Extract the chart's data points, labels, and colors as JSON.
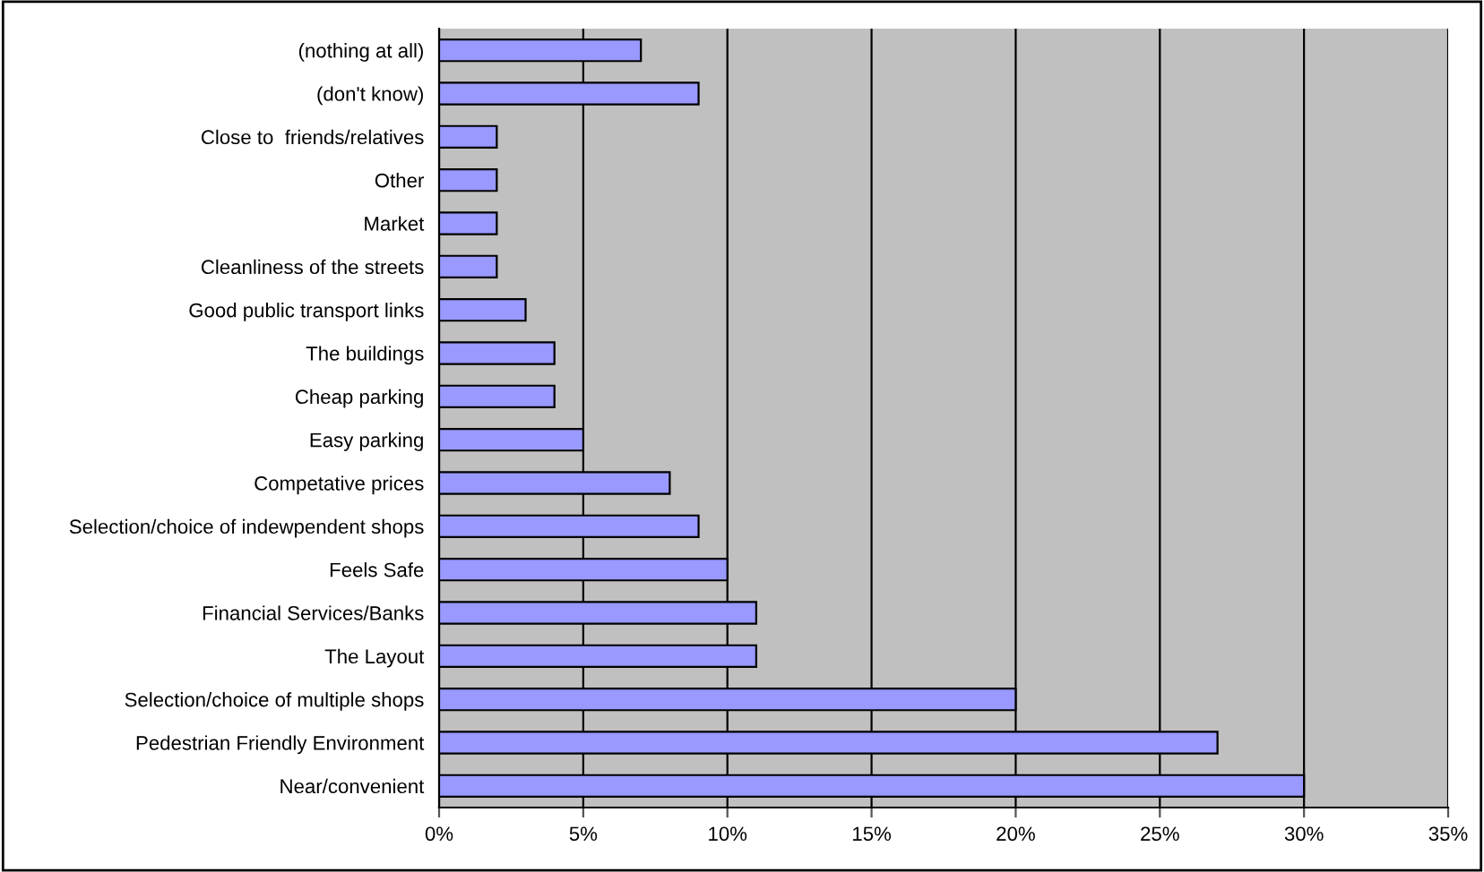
{
  "chart_data": {
    "type": "bar",
    "orientation": "horizontal",
    "categories": [
      "(nothing at all)",
      "(don't know)",
      "Close to  friends/relatives",
      "Other",
      "Market",
      "Cleanliness of the streets",
      "Good public transport links",
      "The buildings",
      "Cheap parking",
      "Easy parking",
      "Competative prices",
      "Selection/choice of indewpendent shops",
      "Feels Safe",
      "Financial Services/Banks",
      "The Layout",
      "Selection/choice of multiple shops",
      "Pedestrian Friendly Environment",
      "Near/convenient"
    ],
    "values": [
      7,
      9,
      2,
      2,
      2,
      2,
      3,
      4,
      4,
      5,
      8,
      9,
      10,
      11,
      11,
      20,
      27,
      30
    ],
    "color": "#9999ff",
    "xlim": [
      0,
      35
    ],
    "xticks": [
      {
        "value": 0,
        "label": "0%"
      },
      {
        "value": 5,
        "label": "5%"
      },
      {
        "value": 10,
        "label": "10%"
      },
      {
        "value": 15,
        "label": "15%"
      },
      {
        "value": 20,
        "label": "20%"
      },
      {
        "value": 25,
        "label": "25%"
      },
      {
        "value": 30,
        "label": "30%"
      },
      {
        "value": 35,
        "label": "35%"
      }
    ],
    "grid": "x",
    "legend": false
  }
}
